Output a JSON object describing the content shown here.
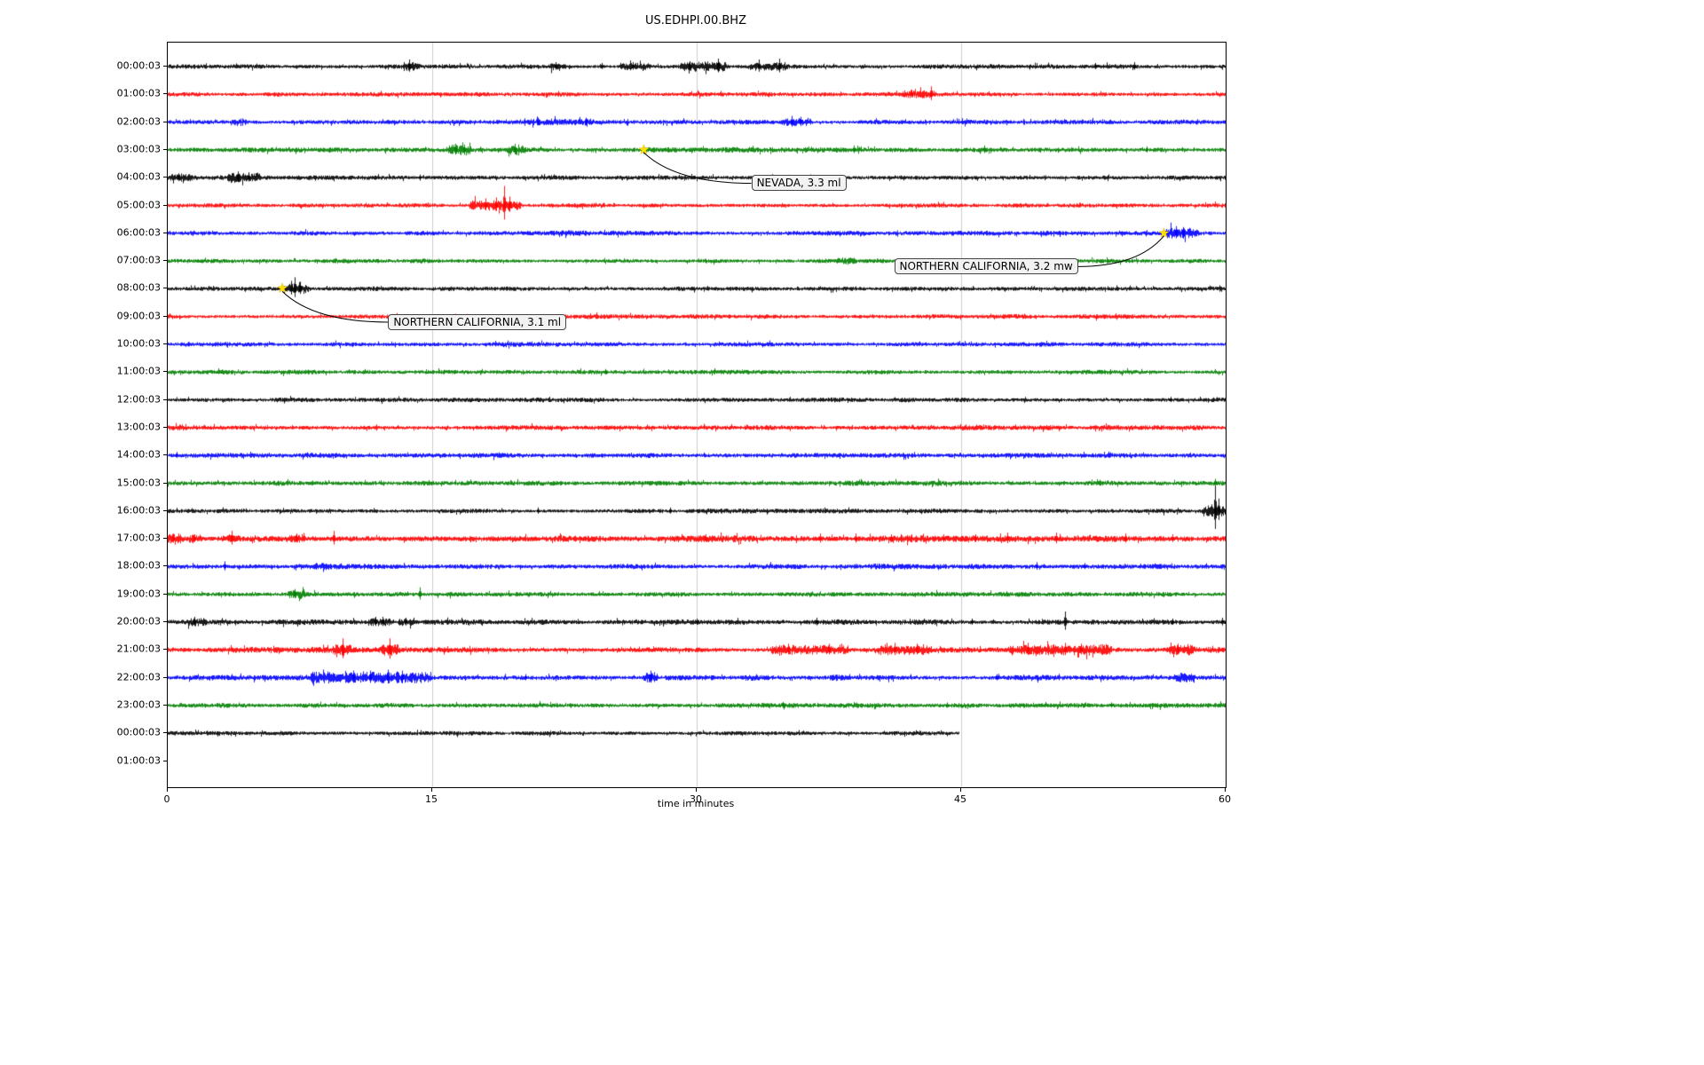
{
  "chart_data": {
    "type": "line",
    "subtype": "seismogram-dayplot",
    "title": "US.EDHPI.00.BHZ",
    "xlabel": "time in minutes",
    "x_range_minutes": [
      0,
      60
    ],
    "x_ticks": [
      "0",
      "15",
      "30",
      "45",
      "60"
    ],
    "x_tick_values": [
      0,
      15,
      30,
      45,
      60
    ],
    "gridlines_minutes": [
      15,
      30,
      45
    ],
    "grid_color": "#cccccc",
    "colors_cycle": [
      "#000000",
      "#ff0000",
      "#0000ff",
      "#008000"
    ],
    "rows": [
      {
        "label": "00:00:03",
        "color": "#000000",
        "base": 2.2,
        "ends": 60,
        "bursts": [
          [
            13.4,
            14.1,
            3
          ],
          [
            21.6,
            22.4,
            2.5
          ],
          [
            25.8,
            27.2,
            2.5
          ],
          [
            29.2,
            31.6,
            4
          ],
          [
            33.2,
            35.0,
            3
          ]
        ],
        "spikes": [
          [
            13.7,
            8
          ],
          [
            22.0,
            5
          ],
          [
            24.6,
            4
          ],
          [
            26.4,
            5
          ],
          [
            29.6,
            6
          ],
          [
            31.2,
            9
          ],
          [
            33.5,
            8
          ],
          [
            34.7,
            9
          ],
          [
            52.6,
            4
          ],
          [
            54.8,
            5
          ]
        ]
      },
      {
        "label": "01:00:03",
        "color": "#ff0000",
        "base": 2.2,
        "ends": 60,
        "bursts": [
          [
            41.8,
            43.5,
            3
          ]
        ],
        "spikes": [
          [
            42.2,
            5
          ],
          [
            43.3,
            9
          ]
        ]
      },
      {
        "label": "02:00:03",
        "color": "#0000ff",
        "base": 2.2,
        "ends": 60,
        "bursts": [
          [
            3.7,
            4.3,
            2.5
          ],
          [
            20.4,
            24.0,
            1.5
          ],
          [
            34.9,
            36.4,
            3.5
          ]
        ],
        "spikes": [
          [
            21.0,
            5
          ],
          [
            23.7,
            5
          ],
          [
            35.4,
            7
          ],
          [
            35.9,
            6
          ]
        ]
      },
      {
        "label": "03:00:03",
        "color": "#008000",
        "base": 2.3,
        "ends": 60,
        "bursts": [
          [
            15.9,
            17.1,
            4.5
          ],
          [
            19.4,
            20.1,
            4.5
          ],
          [
            27.0,
            40.0,
            0.8
          ]
        ],
        "spikes": [
          [
            16.3,
            7
          ],
          [
            16.8,
            6
          ],
          [
            19.7,
            7
          ],
          [
            38.9,
            5
          ],
          [
            46.3,
            5
          ],
          [
            55.5,
            4
          ]
        ]
      },
      {
        "label": "04:00:03",
        "color": "#000000",
        "base": 2.2,
        "ends": 60,
        "bursts": [
          [
            0.2,
            1.3,
            3
          ],
          [
            3.5,
            5.1,
            3.5
          ]
        ],
        "spikes": [
          [
            0.6,
            5
          ],
          [
            4.0,
            7
          ],
          [
            4.6,
            6
          ],
          [
            14.3,
            3.5
          ]
        ]
      },
      {
        "label": "05:00:03",
        "color": "#ff0000",
        "base": 2.2,
        "ends": 60,
        "bursts": [
          [
            17.2,
            19.9,
            5
          ]
        ],
        "spikes": [
          [
            18.0,
            8
          ],
          [
            18.6,
            9
          ],
          [
            19.1,
            22
          ],
          [
            19.4,
            10
          ]
        ]
      },
      {
        "label": "06:00:03",
        "color": "#0000ff",
        "base": 2.4,
        "ends": 60,
        "bursts": [
          [
            20.0,
            24.0,
            0.8
          ],
          [
            56.7,
            58.3,
            4.5
          ]
        ],
        "spikes": [
          [
            57.2,
            8
          ],
          [
            57.6,
            7
          ]
        ]
      },
      {
        "label": "07:00:03",
        "color": "#008000",
        "base": 2.2,
        "ends": 60,
        "bursts": [
          [
            38.1,
            38.9,
            2.5
          ]
        ],
        "spikes": []
      },
      {
        "label": "08:00:03",
        "color": "#000000",
        "base": 2.2,
        "ends": 60,
        "bursts": [
          [
            6.7,
            7.9,
            4
          ]
        ],
        "spikes": [
          [
            7.0,
            9
          ],
          [
            7.2,
            13
          ],
          [
            7.5,
            8
          ]
        ]
      },
      {
        "label": "09:00:03",
        "color": "#ff0000",
        "base": 2.3,
        "ends": 60,
        "bursts": [],
        "spikes": []
      },
      {
        "label": "10:00:03",
        "color": "#0000ff",
        "base": 2.3,
        "ends": 60,
        "bursts": [],
        "spikes": []
      },
      {
        "label": "11:00:03",
        "color": "#008000",
        "base": 2.3,
        "ends": 60,
        "bursts": [],
        "spikes": [
          [
            24.8,
            3.5
          ]
        ]
      },
      {
        "label": "12:00:03",
        "color": "#000000",
        "base": 2.2,
        "ends": 60,
        "bursts": [],
        "spikes": [
          [
            56.9,
            3.5
          ]
        ]
      },
      {
        "label": "13:00:03",
        "color": "#ff0000",
        "base": 2.5,
        "ends": 60,
        "bursts": [
          [
            0.0,
            1.0,
            1.5
          ]
        ],
        "spikes": []
      },
      {
        "label": "14:00:03",
        "color": "#0000ff",
        "base": 2.4,
        "ends": 60,
        "bursts": [],
        "spikes": [
          [
            0.5,
            4
          ]
        ]
      },
      {
        "label": "15:00:03",
        "color": "#008000",
        "base": 2.5,
        "ends": 60,
        "bursts": [],
        "spikes": [
          [
            59.4,
            5
          ]
        ]
      },
      {
        "label": "16:00:03",
        "color": "#000000",
        "base": 2.3,
        "ends": 60,
        "bursts": [
          [
            58.8,
            59.9,
            5
          ]
        ],
        "spikes": [
          [
            21.0,
            4
          ],
          [
            28.5,
            4
          ],
          [
            59.4,
            28
          ],
          [
            59.6,
            14
          ]
        ]
      },
      {
        "label": "17:00:03",
        "color": "#ff0000",
        "base": 3.0,
        "ends": 60,
        "bursts": [
          [
            0.1,
            0.7,
            3
          ],
          [
            1.2,
            1.8,
            2.5
          ],
          [
            3.2,
            3.9,
            3
          ],
          [
            6.9,
            7.7,
            2.5
          ],
          [
            30.0,
            58.0,
            0.7
          ]
        ],
        "spikes": [
          [
            0.3,
            6
          ],
          [
            1.5,
            5
          ],
          [
            3.6,
            9
          ],
          [
            7.3,
            6
          ],
          [
            9.4,
            9
          ],
          [
            30.5,
            5
          ],
          [
            37.0,
            6
          ],
          [
            39.0,
            6
          ],
          [
            41.0,
            5
          ],
          [
            44.0,
            5
          ],
          [
            45.8,
            5
          ],
          [
            47.6,
            7
          ],
          [
            50.4,
            7
          ],
          [
            54.3,
            6
          ],
          [
            57.0,
            5
          ]
        ]
      },
      {
        "label": "18:00:03",
        "color": "#0000ff",
        "base": 2.5,
        "ends": 60,
        "bursts": [
          [
            8.4,
            9.1,
            1.5
          ],
          [
            40.0,
            44.0,
            0.6
          ]
        ],
        "spikes": [
          [
            3.2,
            6
          ],
          [
            49.3,
            5
          ],
          [
            52.0,
            4
          ]
        ]
      },
      {
        "label": "19:00:03",
        "color": "#008000",
        "base": 2.3,
        "ends": 60,
        "bursts": [
          [
            6.9,
            7.7,
            3.5
          ]
        ],
        "spikes": [
          [
            7.2,
            6
          ],
          [
            14.3,
            8
          ]
        ]
      },
      {
        "label": "20:00:03",
        "color": "#000000",
        "base": 2.6,
        "ends": 60,
        "bursts": [
          [
            1.2,
            2.0,
            3
          ],
          [
            11.5,
            12.5,
            3
          ],
          [
            13.2,
            13.8,
            2.5
          ]
        ],
        "spikes": [
          [
            1.5,
            6
          ],
          [
            11.8,
            6
          ],
          [
            12.2,
            6
          ],
          [
            13.5,
            5
          ],
          [
            30.0,
            4
          ],
          [
            36.8,
            5
          ],
          [
            45.6,
            4
          ],
          [
            50.9,
            12
          ],
          [
            57.0,
            4
          ],
          [
            59.8,
            5
          ]
        ]
      },
      {
        "label": "21:00:03",
        "color": "#ff0000",
        "base": 2.8,
        "ends": 60,
        "bursts": [
          [
            9.5,
            10.3,
            4
          ],
          [
            12.2,
            13.0,
            4.5
          ],
          [
            34.3,
            38.6,
            3.5
          ],
          [
            40.4,
            43.2,
            4
          ],
          [
            47.8,
            53.4,
            4
          ],
          [
            56.8,
            58.1,
            3.5
          ]
        ],
        "spikes": [
          [
            9.9,
            13
          ],
          [
            12.6,
            13
          ],
          [
            35.2,
            7
          ],
          [
            37.5,
            7
          ],
          [
            41.2,
            8
          ],
          [
            42.5,
            7
          ],
          [
            48.8,
            8
          ],
          [
            50.9,
            8
          ],
          [
            51.8,
            7
          ],
          [
            57.3,
            7
          ]
        ]
      },
      {
        "label": "22:00:03",
        "color": "#0000ff",
        "base": 2.6,
        "ends": 60,
        "bursts": [
          [
            8.2,
            14.8,
            4.5
          ],
          [
            27.1,
            27.7,
            4
          ],
          [
            32.8,
            33.4,
            1.8
          ],
          [
            37.7,
            38.3,
            1.8
          ],
          [
            57.2,
            58.1,
            3.5
          ]
        ],
        "spikes": [
          [
            10.5,
            8
          ],
          [
            11.5,
            8
          ],
          [
            12.5,
            9
          ],
          [
            13.3,
            8
          ],
          [
            20.3,
            4
          ],
          [
            27.4,
            8
          ],
          [
            47.0,
            4
          ]
        ]
      },
      {
        "label": "23:00:03",
        "color": "#008000",
        "base": 2.4,
        "ends": 60,
        "bursts": [],
        "spikes": [
          [
            34.9,
            4
          ],
          [
            44.2,
            3.5
          ],
          [
            53.5,
            3.5
          ]
        ]
      },
      {
        "label": "00:00:03",
        "color": "#000000",
        "base": 2.2,
        "ends": 44.85,
        "bursts": [],
        "spikes": []
      },
      {
        "label": "01:00:03",
        "color": null,
        "base": 0,
        "ends": 0,
        "bursts": [],
        "spikes": []
      }
    ],
    "annotations": [
      {
        "text": "NEVADA, 3.3 ml",
        "star": {
          "row": 3,
          "minute": 27.0
        },
        "box": {
          "minute": 33.1,
          "row": 4.2
        },
        "attach": "left"
      },
      {
        "text": "NORTHERN CALIFORNIA, 3.2 mw",
        "star": {
          "row": 6,
          "minute": 56.5
        },
        "box": {
          "minute": 41.2,
          "row": 7.2
        },
        "attach": "right"
      },
      {
        "text": "NORTHERN CALIFORNIA, 3.1 ml",
        "star": {
          "row": 8,
          "minute": 6.5
        },
        "box": {
          "minute": 12.5,
          "row": 9.2
        },
        "attach": "left"
      }
    ],
    "star_marker": "★",
    "star_color": "#ffdd00"
  }
}
